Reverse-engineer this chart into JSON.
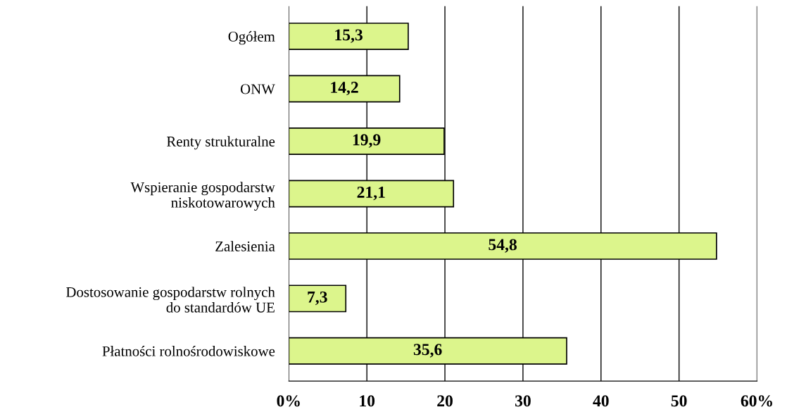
{
  "chart_data": {
    "type": "bar",
    "orientation": "horizontal",
    "categories": [
      "Ogółem",
      "ONW",
      "Renty strukturalne",
      "Wspieranie gospodarstw\nniskotowarowych",
      "Zalesienia",
      "Dostosowanie gospodarstw rolnych\ndo standardów UE",
      "Płatności rolnośrodowiskowe"
    ],
    "values": [
      15.3,
      14.2,
      19.9,
      21.1,
      54.8,
      7.3,
      35.6
    ],
    "value_labels": [
      "15,3",
      "14,2",
      "19,9",
      "21,1",
      "54,8",
      "7,3",
      "35,6"
    ],
    "color": "#dcf58c",
    "xlim": [
      0,
      60
    ],
    "xticks": [
      {
        "value": 0,
        "label": "0%"
      },
      10,
      20,
      30,
      40,
      50,
      {
        "value": 60,
        "label": "60%"
      }
    ],
    "grid": "x"
  }
}
